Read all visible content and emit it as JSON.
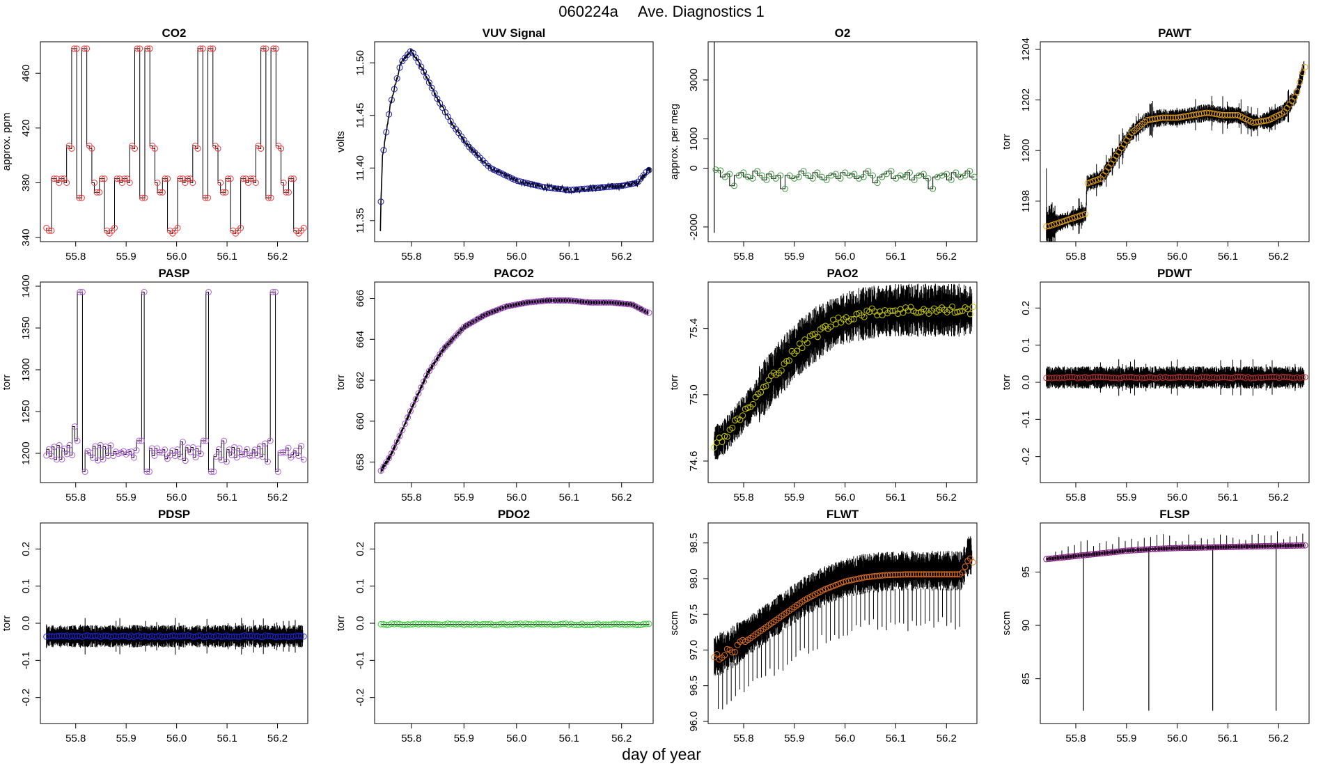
{
  "figure": {
    "run_id": "060224a",
    "title": "Ave. Diagnostics 1",
    "xlabel": "day of year"
  },
  "chart_data": [
    {
      "type": "line",
      "title": "CO2",
      "ylabel": "approx. ppm",
      "xlim": [
        55.73,
        56.26
      ],
      "ylim": [
        337,
        483
      ],
      "xticks": [
        55.8,
        55.9,
        56.0,
        56.1,
        56.2
      ],
      "yticks": [
        340,
        380,
        420,
        460
      ],
      "marker_color": "#e8393b",
      "description_mode": "step",
      "x": [
        55.742,
        55.747,
        55.752,
        55.757,
        55.762,
        55.767,
        55.772,
        55.777,
        55.782,
        55.787,
        55.792,
        55.797,
        55.802,
        55.807,
        55.812,
        55.817,
        55.822,
        55.827,
        55.832,
        55.837,
        55.842,
        55.847,
        55.852,
        55.857,
        55.862,
        55.867,
        55.872,
        55.877,
        55.882,
        55.887,
        55.892,
        55.897,
        55.902,
        55.907,
        55.912,
        55.917,
        55.922,
        55.927,
        55.932,
        55.937,
        55.942,
        55.947,
        55.952,
        55.957,
        55.962,
        55.967,
        55.972,
        55.977,
        55.982,
        55.987,
        55.992,
        55.997,
        56.002,
        56.007,
        56.012,
        56.017,
        56.022,
        56.027,
        56.032,
        56.037,
        56.042,
        56.047,
        56.052,
        56.057,
        56.062,
        56.067,
        56.072,
        56.077,
        56.082,
        56.087,
        56.092,
        56.097,
        56.102,
        56.107,
        56.112,
        56.117,
        56.122,
        56.127,
        56.132,
        56.137,
        56.142,
        56.147,
        56.152,
        56.157,
        56.162,
        56.167,
        56.172,
        56.177,
        56.182,
        56.187,
        56.192,
        56.197,
        56.202,
        56.207,
        56.212,
        56.217,
        56.222,
        56.227,
        56.232,
        56.237,
        56.242,
        56.247,
        56.252
      ],
      "y": [
        347,
        345,
        345,
        383,
        383,
        380,
        383,
        383,
        380,
        407,
        405,
        478,
        478,
        369,
        369,
        478,
        478,
        407,
        405,
        380,
        373,
        373,
        383,
        383,
        345,
        343,
        345,
        347,
        383,
        383,
        380,
        383,
        383,
        380,
        407,
        405,
        478,
        478,
        369,
        369,
        478,
        478,
        407,
        405,
        380,
        373,
        373,
        383,
        383,
        345,
        343,
        345,
        347,
        383,
        383,
        380,
        383,
        383,
        380,
        407,
        405,
        478,
        478,
        369,
        369,
        478,
        478,
        407,
        405,
        380,
        373,
        373,
        383,
        383,
        345,
        343,
        345,
        347,
        383,
        383,
        380,
        383,
        383,
        380,
        407,
        405,
        478,
        478,
        369,
        369,
        478,
        478,
        407,
        405,
        380,
        373,
        373,
        383,
        383,
        345,
        343,
        345,
        347
      ]
    },
    {
      "type": "line",
      "title": "VUV Signal",
      "ylabel": "volts",
      "xlim": [
        55.73,
        56.26
      ],
      "ylim": [
        11.33,
        11.52
      ],
      "xticks": [
        55.8,
        55.9,
        56.0,
        56.1,
        56.2
      ],
      "yticks": [
        11.35,
        11.4,
        11.45,
        11.5
      ],
      "marker_color": "#1a1a9a",
      "anchors": [
        [
          55.74,
          11.34
        ],
        [
          55.745,
          11.41
        ],
        [
          55.76,
          11.46
        ],
        [
          55.78,
          11.5
        ],
        [
          55.8,
          11.512
        ],
        [
          55.82,
          11.495
        ],
        [
          55.85,
          11.465
        ],
        [
          55.88,
          11.44
        ],
        [
          55.91,
          11.42
        ],
        [
          55.95,
          11.4
        ],
        [
          56.0,
          11.388
        ],
        [
          56.05,
          11.382
        ],
        [
          56.1,
          11.379
        ],
        [
          56.15,
          11.381
        ],
        [
          56.2,
          11.383
        ],
        [
          56.23,
          11.386
        ],
        [
          56.25,
          11.398
        ]
      ]
    },
    {
      "type": "line",
      "title": "O2",
      "ylabel": "approx. per meg",
      "xlim": [
        55.73,
        56.26
      ],
      "ylim": [
        -2500,
        4300
      ],
      "xticks": [
        55.8,
        55.9,
        56.0,
        56.1,
        56.2
      ],
      "yticks": [
        -2000,
        0,
        1000,
        3000
      ],
      "marker_color": "#3d9a3d",
      "spike": {
        "x": 55.742,
        "ymin": -2200,
        "ymax": 4300
      },
      "values": [
        -50,
        -80,
        -300,
        -200,
        -600,
        -250,
        -150,
        -300,
        -350,
        -100,
        -250,
        -400,
        -200,
        -350,
        -250,
        -700,
        -250,
        -350,
        -300,
        -100,
        -250,
        -350,
        -150,
        -300,
        -400,
        -250,
        -200,
        -350,
        -150,
        -250,
        -200,
        -350,
        -300,
        -100,
        -250,
        -500,
        -300,
        -200,
        -100,
        -350,
        -250,
        -300,
        -150,
        -400,
        -250,
        -200,
        -350,
        -700,
        -300,
        -250,
        -200,
        -400,
        -150,
        -300,
        -250,
        -100,
        -300
      ]
    },
    {
      "type": "line",
      "title": "PAWT",
      "ylabel": "torr",
      "xlim": [
        55.73,
        56.26
      ],
      "ylim": [
        1196.4,
        1204.3
      ],
      "xticks": [
        55.8,
        55.9,
        56.0,
        56.1,
        56.2
      ],
      "yticks": [
        1198,
        1200,
        1202,
        1204
      ],
      "marker_color": "#e8a317",
      "anchors": [
        [
          55.745,
          1197.0
        ],
        [
          55.76,
          1197.1
        ],
        [
          55.79,
          1197.3
        ],
        [
          55.82,
          1197.5
        ],
        [
          55.822,
          1198.7
        ],
        [
          55.85,
          1198.9
        ],
        [
          55.88,
          1199.8
        ],
        [
          55.91,
          1200.7
        ],
        [
          55.94,
          1201.2
        ],
        [
          55.97,
          1201.3
        ],
        [
          56.0,
          1201.3
        ],
        [
          56.03,
          1201.4
        ],
        [
          56.06,
          1201.5
        ],
        [
          56.09,
          1201.4
        ],
        [
          56.12,
          1201.4
        ],
        [
          56.15,
          1201.1
        ],
        [
          56.18,
          1201.2
        ],
        [
          56.21,
          1201.5
        ],
        [
          56.235,
          1202.2
        ],
        [
          56.25,
          1203.3
        ]
      ]
    },
    {
      "type": "line",
      "title": "PASP",
      "ylabel": "torr",
      "xlim": [
        55.73,
        56.26
      ],
      "ylim": [
        1165,
        1405
      ],
      "xticks": [
        55.8,
        55.9,
        56.0,
        56.1,
        56.2
      ],
      "yticks": [
        1200,
        1250,
        1300,
        1350,
        1400
      ],
      "marker_color": "#b060d8",
      "spikes_x": [
        55.81,
        55.935,
        56.063,
        56.193
      ],
      "spike_top": 1393
    },
    {
      "type": "line",
      "title": "PACO2",
      "ylabel": "torr",
      "xlim": [
        55.73,
        56.26
      ],
      "ylim": [
        657.0,
        666.8
      ],
      "xticks": [
        55.8,
        55.9,
        56.0,
        56.1,
        56.2
      ],
      "yticks": [
        658,
        660,
        662,
        664,
        666
      ],
      "marker_color": "#a050c0",
      "anchors": [
        [
          55.74,
          657.5
        ],
        [
          55.76,
          658.3
        ],
        [
          55.78,
          659.4
        ],
        [
          55.8,
          660.6
        ],
        [
          55.83,
          662.3
        ],
        [
          55.86,
          663.5
        ],
        [
          55.9,
          664.6
        ],
        [
          55.94,
          665.2
        ],
        [
          55.98,
          665.6
        ],
        [
          56.02,
          665.8
        ],
        [
          56.06,
          665.9
        ],
        [
          56.1,
          665.9
        ],
        [
          56.14,
          665.8
        ],
        [
          56.18,
          665.8
        ],
        [
          56.22,
          665.7
        ],
        [
          56.25,
          665.3
        ]
      ]
    },
    {
      "type": "line",
      "title": "PAO2",
      "ylabel": "torr",
      "xlim": [
        55.73,
        56.26
      ],
      "ylim": [
        74.47,
        75.68
      ],
      "xticks": [
        55.8,
        55.9,
        56.0,
        56.1,
        56.2
      ],
      "yticks": [
        74.6,
        75.0,
        75.4
      ],
      "marker_color": "#c8c800",
      "anchors": [
        [
          55.74,
          74.7
        ],
        [
          55.76,
          74.74
        ],
        [
          55.79,
          74.85
        ],
        [
          55.82,
          74.96
        ],
        [
          55.86,
          75.12
        ],
        [
          55.9,
          75.26
        ],
        [
          55.94,
          75.36
        ],
        [
          55.98,
          75.44
        ],
        [
          56.02,
          75.48
        ],
        [
          56.06,
          75.5
        ],
        [
          56.1,
          75.51
        ],
        [
          56.15,
          75.51
        ],
        [
          56.2,
          75.51
        ],
        [
          56.25,
          75.51
        ]
      ]
    },
    {
      "type": "line",
      "title": "PDWT",
      "ylabel": "torr",
      "xlim": [
        55.73,
        56.26
      ],
      "ylim": [
        -0.27,
        0.27
      ],
      "xticks": [
        55.8,
        55.9,
        56.0,
        56.1,
        56.2
      ],
      "yticks": [
        -0.2,
        -0.1,
        0.0,
        0.1,
        0.2
      ],
      "marker_color": "#b03030",
      "level": 0.013
    },
    {
      "type": "line",
      "title": "PDSP",
      "ylabel": "torr",
      "xlim": [
        55.73,
        56.26
      ],
      "ylim": [
        -0.27,
        0.27
      ],
      "xticks": [
        55.8,
        55.9,
        56.0,
        56.1,
        56.2
      ],
      "yticks": [
        -0.2,
        -0.1,
        0.0,
        0.1,
        0.2
      ],
      "marker_color": "#2222cc",
      "level": -0.035
    },
    {
      "type": "line",
      "title": "PDO2",
      "ylabel": "torr",
      "xlim": [
        55.73,
        56.26
      ],
      "ylim": [
        -0.27,
        0.27
      ],
      "xticks": [
        55.8,
        55.9,
        56.0,
        56.1,
        56.2
      ],
      "yticks": [
        -0.2,
        -0.1,
        0.0,
        0.1,
        0.2
      ],
      "marker_color": "#33cc33",
      "level": -0.003
    },
    {
      "type": "line",
      "title": "FLWT",
      "ylabel": "sccm",
      "xlim": [
        55.73,
        56.26
      ],
      "ylim": [
        95.97,
        98.78
      ],
      "xticks": [
        55.8,
        55.9,
        56.0,
        56.1,
        56.2
      ],
      "yticks": [
        96.0,
        96.5,
        97.0,
        97.5,
        98.0,
        98.5
      ],
      "marker_color": "#e07020",
      "anchors": [
        [
          55.74,
          96.85
        ],
        [
          55.77,
          96.95
        ],
        [
          55.8,
          97.1
        ],
        [
          55.84,
          97.3
        ],
        [
          55.88,
          97.5
        ],
        [
          55.92,
          97.7
        ],
        [
          55.96,
          97.85
        ],
        [
          56.0,
          97.96
        ],
        [
          56.04,
          98.02
        ],
        [
          56.08,
          98.05
        ],
        [
          56.12,
          98.06
        ],
        [
          56.16,
          98.06
        ],
        [
          56.2,
          98.06
        ],
        [
          56.23,
          98.06
        ],
        [
          56.245,
          98.3
        ],
        [
          56.255,
          98.2
        ]
      ]
    },
    {
      "type": "line",
      "title": "FLSP",
      "ylabel": "sccm",
      "xlim": [
        55.73,
        56.26
      ],
      "ylim": [
        80.8,
        99.6
      ],
      "xticks": [
        55.8,
        55.9,
        56.0,
        56.1,
        56.2
      ],
      "yticks": [
        85,
        90,
        95
      ],
      "marker_color": "#802080",
      "anchors": [
        [
          55.74,
          96.2
        ],
        [
          55.78,
          96.4
        ],
        [
          55.82,
          96.6
        ],
        [
          55.86,
          96.8
        ],
        [
          55.9,
          97.0
        ],
        [
          55.95,
          97.15
        ],
        [
          56.0,
          97.25
        ],
        [
          56.05,
          97.3
        ],
        [
          56.1,
          97.35
        ],
        [
          56.15,
          97.4
        ],
        [
          56.2,
          97.45
        ],
        [
          56.25,
          97.5
        ]
      ],
      "dip_x": [
        55.815,
        55.944,
        56.07,
        56.195
      ],
      "dip_y": 82.0
    }
  ]
}
